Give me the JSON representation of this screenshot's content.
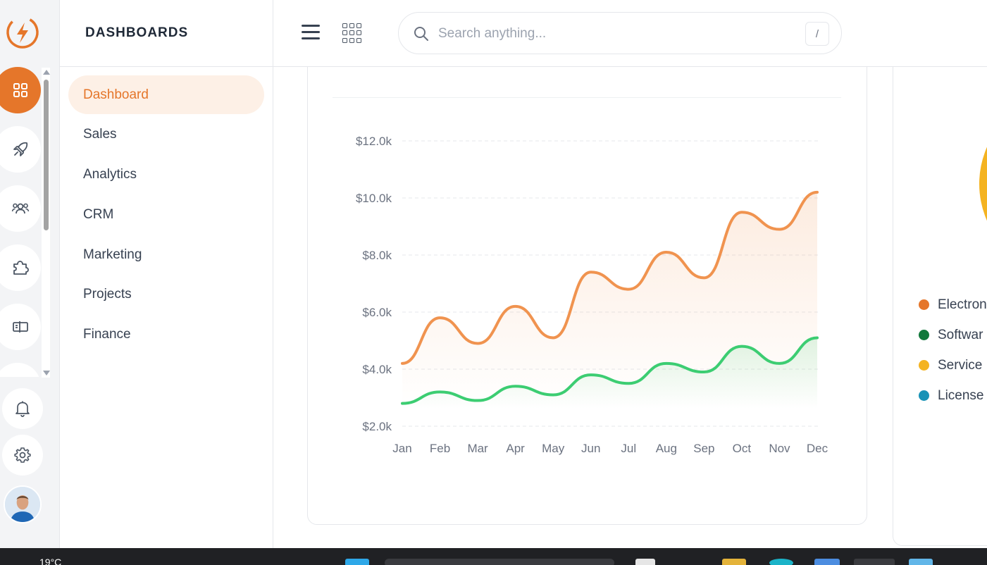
{
  "sidebar": {
    "nav": [
      "dashboards",
      "rocket",
      "users",
      "puzzle",
      "layout"
    ],
    "active_index": 0
  },
  "submenu": {
    "title": "DASHBOARDS",
    "items": [
      "Dashboard",
      "Sales",
      "Analytics",
      "CRM",
      "Marketing",
      "Projects",
      "Finance"
    ],
    "active": "Dashboard"
  },
  "header": {
    "search_placeholder": "Search anything...",
    "search_shortcut": "/"
  },
  "colors": {
    "accent": "#e5762a",
    "orange_series": "#f0934f",
    "green_series": "#3ccd72"
  },
  "chart_data": {
    "type": "area",
    "categories": [
      "Jan",
      "Feb",
      "Mar",
      "Apr",
      "May",
      "Jun",
      "Jul",
      "Aug",
      "Sep",
      "Oct",
      "Nov",
      "Dec"
    ],
    "series": [
      {
        "color": "#f0934f",
        "values": [
          4200,
          5800,
          4900,
          6200,
          5100,
          7400,
          6800,
          8100,
          7200,
          9500,
          8900,
          10200
        ]
      },
      {
        "color": "#3ccd72",
        "values": [
          2800,
          3200,
          2900,
          3400,
          3100,
          3800,
          3500,
          4200,
          3900,
          4800,
          4200,
          5100
        ]
      }
    ],
    "y_ticks": [
      "$2.0k",
      "$4.0k",
      "$6.0k",
      "$8.0k",
      "$10.0k",
      "$12.0k"
    ],
    "ylim": [
      2000,
      12000
    ],
    "grid": true
  },
  "side_legend": [
    {
      "label": "Electron",
      "color": "#e5762a"
    },
    {
      "label": "Softwar",
      "color": "#11783b"
    },
    {
      "label": "Service",
      "color": "#f4b321"
    },
    {
      "label": "License",
      "color": "#1892b6"
    }
  ],
  "taskbar": {
    "weather": "19°C"
  }
}
